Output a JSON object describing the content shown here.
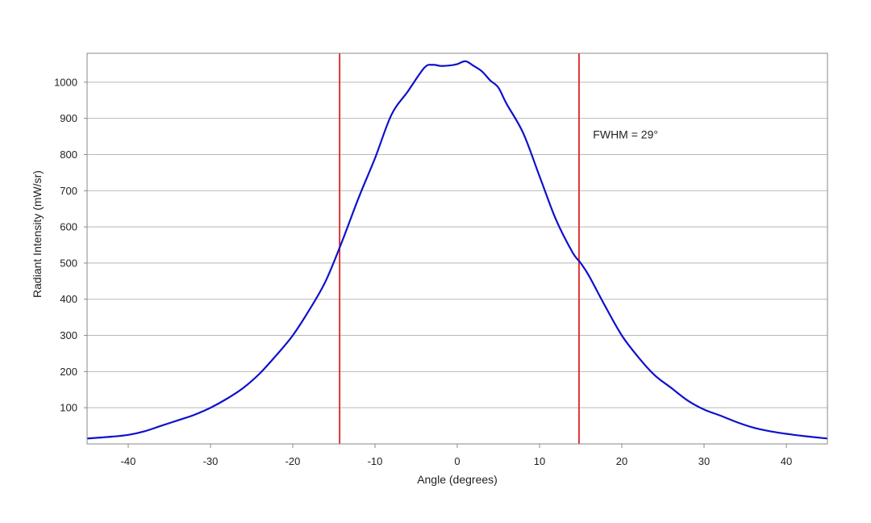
{
  "chart_data": {
    "type": "line",
    "title": "",
    "xlabel": "Angle (degrees)",
    "ylabel": "Radiant Intensity (mW/sr)",
    "xlim": [
      -45,
      45
    ],
    "ylim": [
      0,
      1080
    ],
    "x_ticks": [
      -40,
      -30,
      -20,
      -10,
      0,
      10,
      20,
      30,
      40
    ],
    "y_ticks": [
      100,
      200,
      300,
      400,
      500,
      600,
      700,
      800,
      900,
      1000
    ],
    "grid": "horizontal",
    "series": [
      {
        "color": "#1010cc",
        "x": [
          -45,
          -42,
          -40,
          -38,
          -36,
          -34,
          -32,
          -30,
          -28,
          -26,
          -24,
          -22,
          -20,
          -18,
          -16,
          -14,
          -12,
          -10,
          -8,
          -6,
          -4,
          -3,
          -2,
          -1,
          0,
          1,
          2,
          3,
          4,
          5,
          6,
          8,
          10,
          12,
          14,
          15,
          16,
          18,
          20,
          22,
          24,
          26,
          28,
          30,
          32,
          34,
          36,
          38,
          40,
          42,
          45
        ],
        "y": [
          15,
          20,
          25,
          35,
          50,
          65,
          80,
          100,
          125,
          155,
          195,
          245,
          300,
          370,
          450,
          560,
          680,
          790,
          910,
          975,
          1040,
          1048,
          1045,
          1046,
          1050,
          1058,
          1045,
          1030,
          1005,
          985,
          940,
          860,
          740,
          620,
          530,
          500,
          465,
          380,
          300,
          240,
          190,
          155,
          120,
          95,
          78,
          60,
          45,
          35,
          28,
          22,
          15
        ]
      }
    ],
    "markers": [
      {
        "x": -14.3,
        "color": "#dd2222"
      },
      {
        "x": 14.8,
        "color": "#dd2222"
      }
    ],
    "annotations": [
      {
        "text": "FWHM = 29°",
        "x": 16.5,
        "y": 845
      }
    ]
  }
}
